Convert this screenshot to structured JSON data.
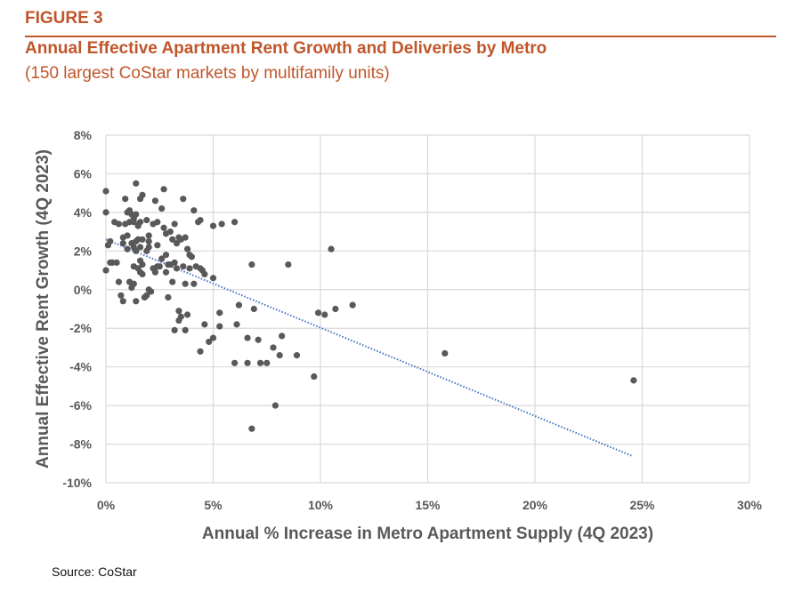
{
  "header": {
    "figure_label": "FIGURE 3",
    "title": "Annual Effective Apartment Rent Growth and Deliveries by Metro",
    "subtitle": "(150 largest CoStar markets by multifamily units)"
  },
  "footer": {
    "source": "Source: CoStar"
  },
  "colors": {
    "brand": "#c0562b",
    "points": "#595959",
    "trendline": "#4472c4",
    "grid": "#d9d9d9"
  },
  "chart_data": {
    "type": "scatter",
    "title": "Annual Effective Apartment Rent Growth and Deliveries by Metro",
    "xlabel": "Annual % Increase in Metro Apartment Supply (4Q 2023)",
    "ylabel": "Annual Effective Rent Growth (4Q 2023)",
    "xlim": [
      0,
      30
    ],
    "ylim": [
      -10,
      8
    ],
    "x_ticks": [
      0,
      5,
      10,
      15,
      20,
      25,
      30
    ],
    "y_ticks": [
      -10,
      -8,
      -6,
      -4,
      -2,
      0,
      2,
      4,
      6,
      8
    ],
    "x_tick_labels": [
      "0%",
      "5%",
      "10%",
      "15%",
      "20%",
      "25%",
      "30%"
    ],
    "y_tick_labels": [
      "-10%",
      "-8%",
      "-6%",
      "-4%",
      "-2%",
      "0%",
      "2%",
      "4%",
      "6%",
      "8%"
    ],
    "grid": true,
    "legend": "none",
    "trendline": {
      "style": "dotted",
      "x": [
        0,
        24.5
      ],
      "y": [
        2.6,
        -8.6
      ]
    },
    "points": [
      [
        0.0,
        5.1
      ],
      [
        0.0,
        4.0
      ],
      [
        0.0,
        1.0
      ],
      [
        0.1,
        2.3
      ],
      [
        0.2,
        2.5
      ],
      [
        0.3,
        1.4
      ],
      [
        0.5,
        1.4
      ],
      [
        0.2,
        1.4
      ],
      [
        0.4,
        3.5
      ],
      [
        0.6,
        3.4
      ],
      [
        0.6,
        0.4
      ],
      [
        0.7,
        -0.3
      ],
      [
        0.8,
        -0.6
      ],
      [
        0.8,
        2.7
      ],
      [
        0.8,
        2.4
      ],
      [
        0.9,
        4.7
      ],
      [
        0.9,
        3.4
      ],
      [
        1.0,
        4.0
      ],
      [
        1.0,
        2.8
      ],
      [
        1.0,
        2.1
      ],
      [
        1.1,
        4.1
      ],
      [
        1.1,
        3.5
      ],
      [
        1.1,
        0.4
      ],
      [
        1.2,
        3.9
      ],
      [
        1.2,
        2.4
      ],
      [
        1.2,
        0.1
      ],
      [
        1.3,
        3.7
      ],
      [
        1.3,
        3.5
      ],
      [
        1.3,
        2.2
      ],
      [
        1.3,
        1.2
      ],
      [
        1.3,
        0.3
      ],
      [
        1.4,
        5.5
      ],
      [
        1.4,
        3.9
      ],
      [
        1.4,
        2.5
      ],
      [
        1.4,
        2.0
      ],
      [
        1.4,
        -0.6
      ],
      [
        1.5,
        3.3
      ],
      [
        1.5,
        2.6
      ],
      [
        1.5,
        1.1
      ],
      [
        1.6,
        4.7
      ],
      [
        1.6,
        3.5
      ],
      [
        1.6,
        2.2
      ],
      [
        1.6,
        1.5
      ],
      [
        1.6,
        0.9
      ],
      [
        1.7,
        4.9
      ],
      [
        1.7,
        2.6
      ],
      [
        1.7,
        1.3
      ],
      [
        1.7,
        0.8
      ],
      [
        1.8,
        -0.4
      ],
      [
        1.9,
        3.6
      ],
      [
        1.9,
        2.0
      ],
      [
        1.9,
        -0.3
      ],
      [
        2.0,
        2.8
      ],
      [
        2.0,
        2.5
      ],
      [
        2.0,
        2.2
      ],
      [
        2.0,
        0.0
      ],
      [
        2.1,
        -0.1
      ],
      [
        2.2,
        3.4
      ],
      [
        2.2,
        1.1
      ],
      [
        2.3,
        4.6
      ],
      [
        2.3,
        0.9
      ],
      [
        2.4,
        3.5
      ],
      [
        2.4,
        2.3
      ],
      [
        2.4,
        1.2
      ],
      [
        2.5,
        1.2
      ],
      [
        2.6,
        4.2
      ],
      [
        2.6,
        1.6
      ],
      [
        2.7,
        5.2
      ],
      [
        2.7,
        3.2
      ],
      [
        2.8,
        2.9
      ],
      [
        2.8,
        1.8
      ],
      [
        2.8,
        0.9
      ],
      [
        2.9,
        1.3
      ],
      [
        2.9,
        -0.4
      ],
      [
        3.0,
        3.0
      ],
      [
        3.0,
        1.3
      ],
      [
        3.1,
        2.6
      ],
      [
        3.1,
        0.4
      ],
      [
        3.2,
        3.4
      ],
      [
        3.2,
        1.4
      ],
      [
        3.2,
        -2.1
      ],
      [
        3.3,
        2.4
      ],
      [
        3.3,
        1.1
      ],
      [
        3.4,
        2.7
      ],
      [
        3.4,
        -1.1
      ],
      [
        3.4,
        -1.6
      ],
      [
        3.5,
        2.6
      ],
      [
        3.5,
        -1.4
      ],
      [
        3.6,
        4.7
      ],
      [
        3.6,
        1.2
      ],
      [
        3.7,
        2.7
      ],
      [
        3.7,
        0.3
      ],
      [
        3.7,
        -2.1
      ],
      [
        3.8,
        2.1
      ],
      [
        3.8,
        -1.3
      ],
      [
        3.9,
        1.8
      ],
      [
        3.9,
        1.1
      ],
      [
        4.0,
        1.7
      ],
      [
        4.1,
        4.1
      ],
      [
        4.1,
        0.3
      ],
      [
        4.2,
        1.2
      ],
      [
        4.3,
        3.5
      ],
      [
        4.4,
        1.1
      ],
      [
        4.4,
        3.6
      ],
      [
        4.5,
        1.0
      ],
      [
        4.6,
        0.8
      ],
      [
        4.4,
        -3.2
      ],
      [
        4.6,
        -1.8
      ],
      [
        4.8,
        -2.7
      ],
      [
        5.0,
        -2.5
      ],
      [
        5.0,
        0.6
      ],
      [
        5.0,
        3.3
      ],
      [
        5.4,
        3.4
      ],
      [
        5.3,
        -1.2
      ],
      [
        5.3,
        -1.9
      ],
      [
        6.0,
        3.5
      ],
      [
        6.0,
        -3.8
      ],
      [
        6.1,
        -1.8
      ],
      [
        6.2,
        -0.8
      ],
      [
        6.6,
        -2.5
      ],
      [
        6.6,
        -3.8
      ],
      [
        6.8,
        1.3
      ],
      [
        6.9,
        -1.0
      ],
      [
        6.8,
        -7.2
      ],
      [
        7.2,
        -3.8
      ],
      [
        7.1,
        -2.6
      ],
      [
        7.5,
        -3.8
      ],
      [
        7.8,
        -3.0
      ],
      [
        7.9,
        -6.0
      ],
      [
        8.1,
        -3.4
      ],
      [
        8.2,
        -2.4
      ],
      [
        8.5,
        1.3
      ],
      [
        8.9,
        -3.4
      ],
      [
        9.7,
        -4.5
      ],
      [
        9.9,
        -1.2
      ],
      [
        10.2,
        -1.3
      ],
      [
        10.5,
        2.1
      ],
      [
        10.7,
        -1.0
      ],
      [
        11.5,
        -0.8
      ],
      [
        15.8,
        -3.3
      ],
      [
        24.6,
        -4.7
      ]
    ]
  }
}
